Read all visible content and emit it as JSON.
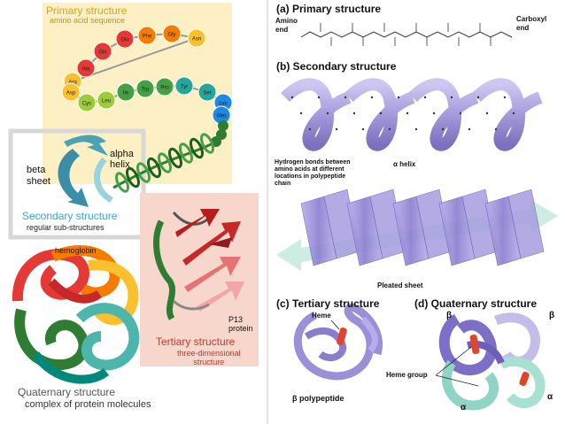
{
  "left_panel": {
    "primary": {
      "title": "Primary structure",
      "subtitle": "amino acid sequence"
    },
    "amino_acids": [
      "Ala",
      "Gln",
      "Glu",
      "Phe",
      "Gly",
      "Asn",
      "Arg",
      "Asp",
      "Cys",
      "Leu",
      "Ile",
      "Trp",
      "Pro",
      "Tyr",
      "Ser",
      "Lys",
      "Met"
    ],
    "colors": {
      "chain": [
        "#e53935",
        "#f57c00",
        "#fbc02d",
        "#9ccc3a",
        "#43a047",
        "#26a69a",
        "#1e88e5"
      ],
      "primary_bg": "#fdf0c4",
      "secondary_bg": "#e2e2e2",
      "tertiary_bg": "#f7d7cc",
      "secondary_title": "#3aa6c7",
      "tertiary_title": "#c0392b"
    },
    "secondary": {
      "alpha_label": "alpha\nhelix",
      "beta_label": "beta\nsheet",
      "title": "Secondary structure",
      "subtitle": "regular sub-structures"
    },
    "tertiary": {
      "protein_label": "P13\nprotein",
      "title": "Tertiary structure",
      "subtitle": "three-dimensional\nstructure"
    },
    "quaternary": {
      "hemoglobin_label": "hemoglobin",
      "title": "Quaternary structure",
      "subtitle": "complex of protein molecules"
    }
  },
  "right_panel": {
    "a": {
      "title": "(a) Primary structure",
      "amino_end": "Amino\nend",
      "carboxyl_end": "Carboxyl\nend"
    },
    "b": {
      "title": "(b) Secondary structure",
      "hbond_caption": "Hydrogen bonds between\namino acids at different\nlocations in polypeptide\nchain",
      "alpha_label": "α helix",
      "pleated_label": "Pleated sheet"
    },
    "c": {
      "title": "(c) Tertiary structure",
      "heme_label": "Heme",
      "beta_poly": "β polypeptide"
    },
    "d": {
      "title": "(d) Quaternary structure",
      "heme_group": "Heme group",
      "beta1": "β",
      "beta2": "β",
      "alpha1": "α",
      "alpha2": "α"
    },
    "colors": {
      "purple": "#9b8fd8",
      "purple_dark": "#6d5fb8",
      "teal": "#8fd4c4",
      "heme": "#e0442a"
    }
  }
}
